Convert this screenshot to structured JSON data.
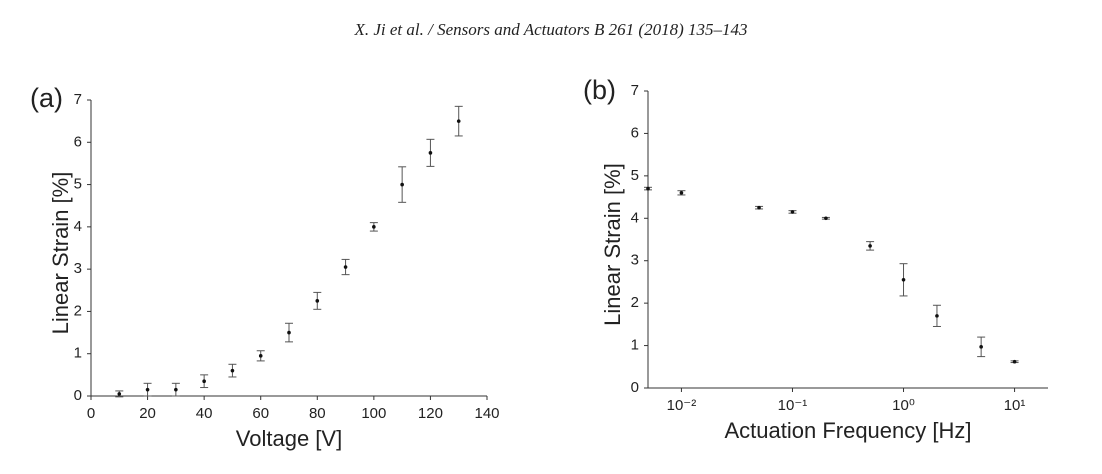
{
  "header": "X. Ji et al. / Sensors and Actuators B 261 (2018) 135–143",
  "chart_data": [
    {
      "type": "scatter",
      "label": "(a)",
      "x_label": "Voltage [V]",
      "y_label": "Linear Strain [%]",
      "x": [
        10,
        20,
        30,
        40,
        50,
        60,
        70,
        80,
        90,
        100,
        110,
        120,
        130
      ],
      "values": [
        0.05,
        0.15,
        0.15,
        0.35,
        0.6,
        0.95,
        1.5,
        2.25,
        3.05,
        4.0,
        5.0,
        5.75,
        6.5
      ],
      "errors": [
        0.07,
        0.15,
        0.15,
        0.15,
        0.15,
        0.12,
        0.22,
        0.2,
        0.18,
        0.1,
        0.42,
        0.32,
        0.35
      ],
      "color": "#111111",
      "xlim": [
        0,
        140
      ],
      "xticks": [
        0,
        20,
        40,
        60,
        80,
        100,
        120,
        140
      ],
      "ylim": [
        0,
        7
      ],
      "yticks": [
        0,
        1,
        2,
        3,
        4,
        5,
        6,
        7
      ],
      "xscale": "linear"
    },
    {
      "type": "scatter",
      "label": "(b)",
      "x_label": "Actuation Frequency [Hz]",
      "y_label": "Linear Strain [%]",
      "x": [
        0.005,
        0.01,
        0.05,
        0.1,
        0.2,
        0.5,
        1,
        2,
        5,
        10
      ],
      "values": [
        4.7,
        4.6,
        4.25,
        4.15,
        4.0,
        3.35,
        2.55,
        1.7,
        0.97,
        0.62
      ],
      "errors": [
        0.03,
        0.05,
        0.03,
        0.03,
        0.02,
        0.1,
        0.38,
        0.25,
        0.23,
        0.02
      ],
      "color": "#111111",
      "xlim": [
        0.005,
        20
      ],
      "xticks": [
        {
          "value": 0.01,
          "label": "10⁻²"
        },
        {
          "value": 0.1,
          "label": "10⁻¹"
        },
        {
          "value": 1,
          "label": "10⁰"
        },
        {
          "value": 10,
          "label": "10¹"
        }
      ],
      "ylim": [
        0,
        7
      ],
      "yticks": [
        0,
        1,
        2,
        3,
        4,
        5,
        6,
        7
      ],
      "xscale": "log"
    }
  ]
}
